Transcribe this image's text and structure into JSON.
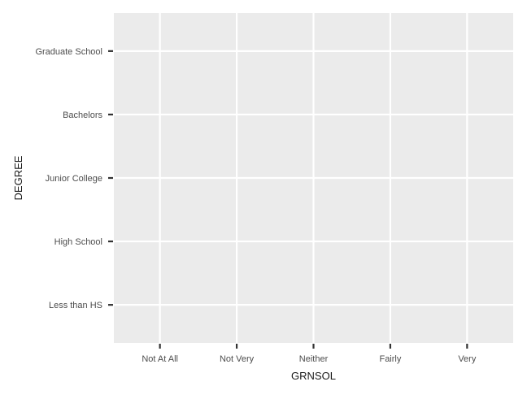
{
  "chart_data": {
    "type": "heatmap",
    "title": "",
    "xlabel": "GRNSOL",
    "ylabel": "DEGREE",
    "x_categories": [
      "Not At All",
      "Not Very",
      "Neither",
      "Fairly",
      "Very"
    ],
    "y_categories": [
      "Less than HS",
      "High School",
      "Junior College",
      "Bachelors",
      "Graduate School"
    ],
    "values": [],
    "grid": true,
    "legend": "none",
    "colors": {
      "panel_background": "#ebebeb",
      "grid_line": "#ffffff",
      "tick_mark": "#333333",
      "tick_label": "#4d4d4d",
      "axis_title": "#1a1a1a"
    }
  }
}
